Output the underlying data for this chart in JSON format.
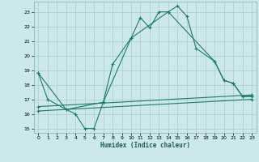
{
  "bg_color": "#cce8ea",
  "grid_color": "#b0d0d3",
  "line_color": "#1a7a6e",
  "xlabel": "Humidex (Indice chaleur)",
  "xlim": [
    -0.5,
    23.5
  ],
  "ylim": [
    14.7,
    23.7
  ],
  "yticks": [
    15,
    16,
    17,
    18,
    19,
    20,
    21,
    22,
    23
  ],
  "xticks": [
    0,
    1,
    2,
    3,
    4,
    5,
    6,
    7,
    8,
    9,
    10,
    11,
    12,
    13,
    14,
    15,
    16,
    17,
    18,
    19,
    20,
    21,
    22,
    23
  ],
  "series": [
    {
      "x": [
        0,
        1,
        3,
        4,
        5,
        6,
        7,
        8,
        10,
        11,
        12,
        13,
        14,
        15,
        16,
        17,
        19,
        20,
        21,
        22,
        23
      ],
      "y": [
        18.8,
        17.0,
        16.3,
        16.0,
        15.0,
        15.0,
        16.8,
        19.4,
        21.2,
        22.6,
        21.9,
        23.0,
        23.0,
        23.4,
        22.7,
        20.5,
        19.6,
        18.3,
        18.1,
        17.2,
        17.2
      ]
    },
    {
      "x": [
        0,
        3,
        7,
        10,
        14,
        19,
        20,
        21,
        22,
        23
      ],
      "y": [
        18.8,
        16.3,
        16.8,
        21.2,
        23.0,
        19.6,
        18.3,
        18.1,
        17.2,
        17.2
      ]
    },
    {
      "x": [
        0,
        23
      ],
      "y": [
        16.5,
        17.3
      ]
    },
    {
      "x": [
        0,
        23
      ],
      "y": [
        16.2,
        17.0
      ]
    }
  ]
}
